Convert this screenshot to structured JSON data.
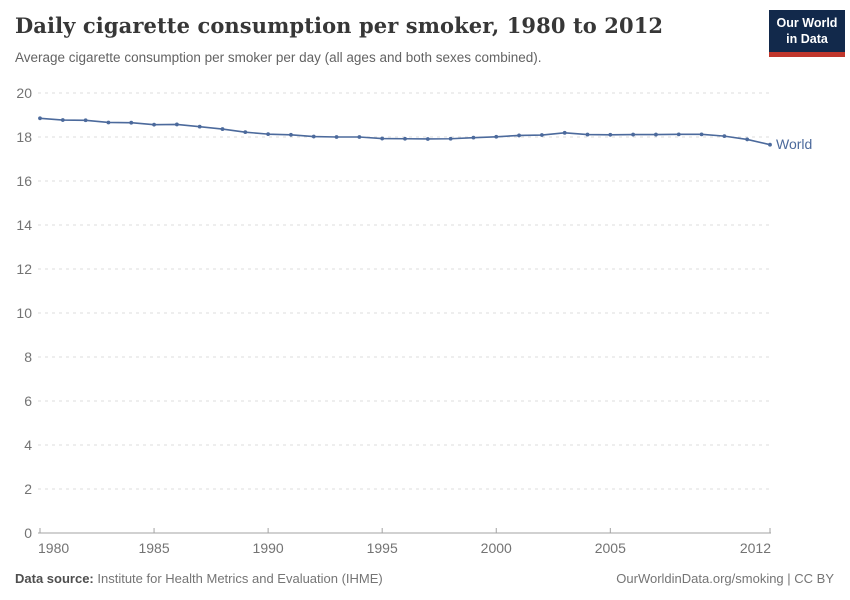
{
  "header": {
    "title": "Daily cigarette consumption per smoker, 1980 to 2012",
    "subtitle": "Average cigarette consumption per smoker per day (all ages and both sexes combined).",
    "logo": {
      "line1": "Our World",
      "line2": "in Data"
    }
  },
  "footer": {
    "datasource_label": "Data source:",
    "datasource_value": "Institute for Health Metrics and Evaluation (IHME)",
    "credit": "OurWorldinData.org/smoking | CC BY"
  },
  "colors": {
    "line": "#4C6A9C",
    "grid": "#dcdcdc",
    "axis": "#a3a3a3",
    "tick_text": "#737373",
    "series_label": "#4C6A9C"
  },
  "chart_data": {
    "type": "line",
    "title": "Daily cigarette consumption per smoker, 1980 to 2012",
    "subtitle": "Average cigarette consumption per smoker per day (all ages and both sexes combined).",
    "xlabel": "",
    "ylabel": "",
    "x": [
      1980,
      1981,
      1982,
      1983,
      1984,
      1985,
      1986,
      1987,
      1988,
      1989,
      1990,
      1991,
      1992,
      1993,
      1994,
      1995,
      1996,
      1997,
      1998,
      1999,
      2000,
      2001,
      2002,
      2003,
      2004,
      2005,
      2006,
      2007,
      2008,
      2009,
      2010,
      2011,
      2012
    ],
    "series": [
      {
        "name": "World",
        "values": [
          18.85,
          18.77,
          18.76,
          18.66,
          18.65,
          18.56,
          18.57,
          18.47,
          18.36,
          18.22,
          18.13,
          18.1,
          18.02,
          18.0,
          18.0,
          17.93,
          17.92,
          17.91,
          17.92,
          17.97,
          18.01,
          18.07,
          18.09,
          18.19,
          18.11,
          18.1,
          18.11,
          18.11,
          18.12,
          18.12,
          18.04,
          17.89,
          17.65
        ]
      }
    ],
    "ylim": [
      0,
      20
    ],
    "yticks": [
      0,
      2,
      4,
      6,
      8,
      10,
      12,
      14,
      16,
      18,
      20
    ],
    "xticks": [
      1980,
      1985,
      1990,
      1995,
      2000,
      2005,
      2012
    ],
    "grid": "horizontal-dashed",
    "legend": "end-of-line-label",
    "markers": "point-per-year"
  }
}
